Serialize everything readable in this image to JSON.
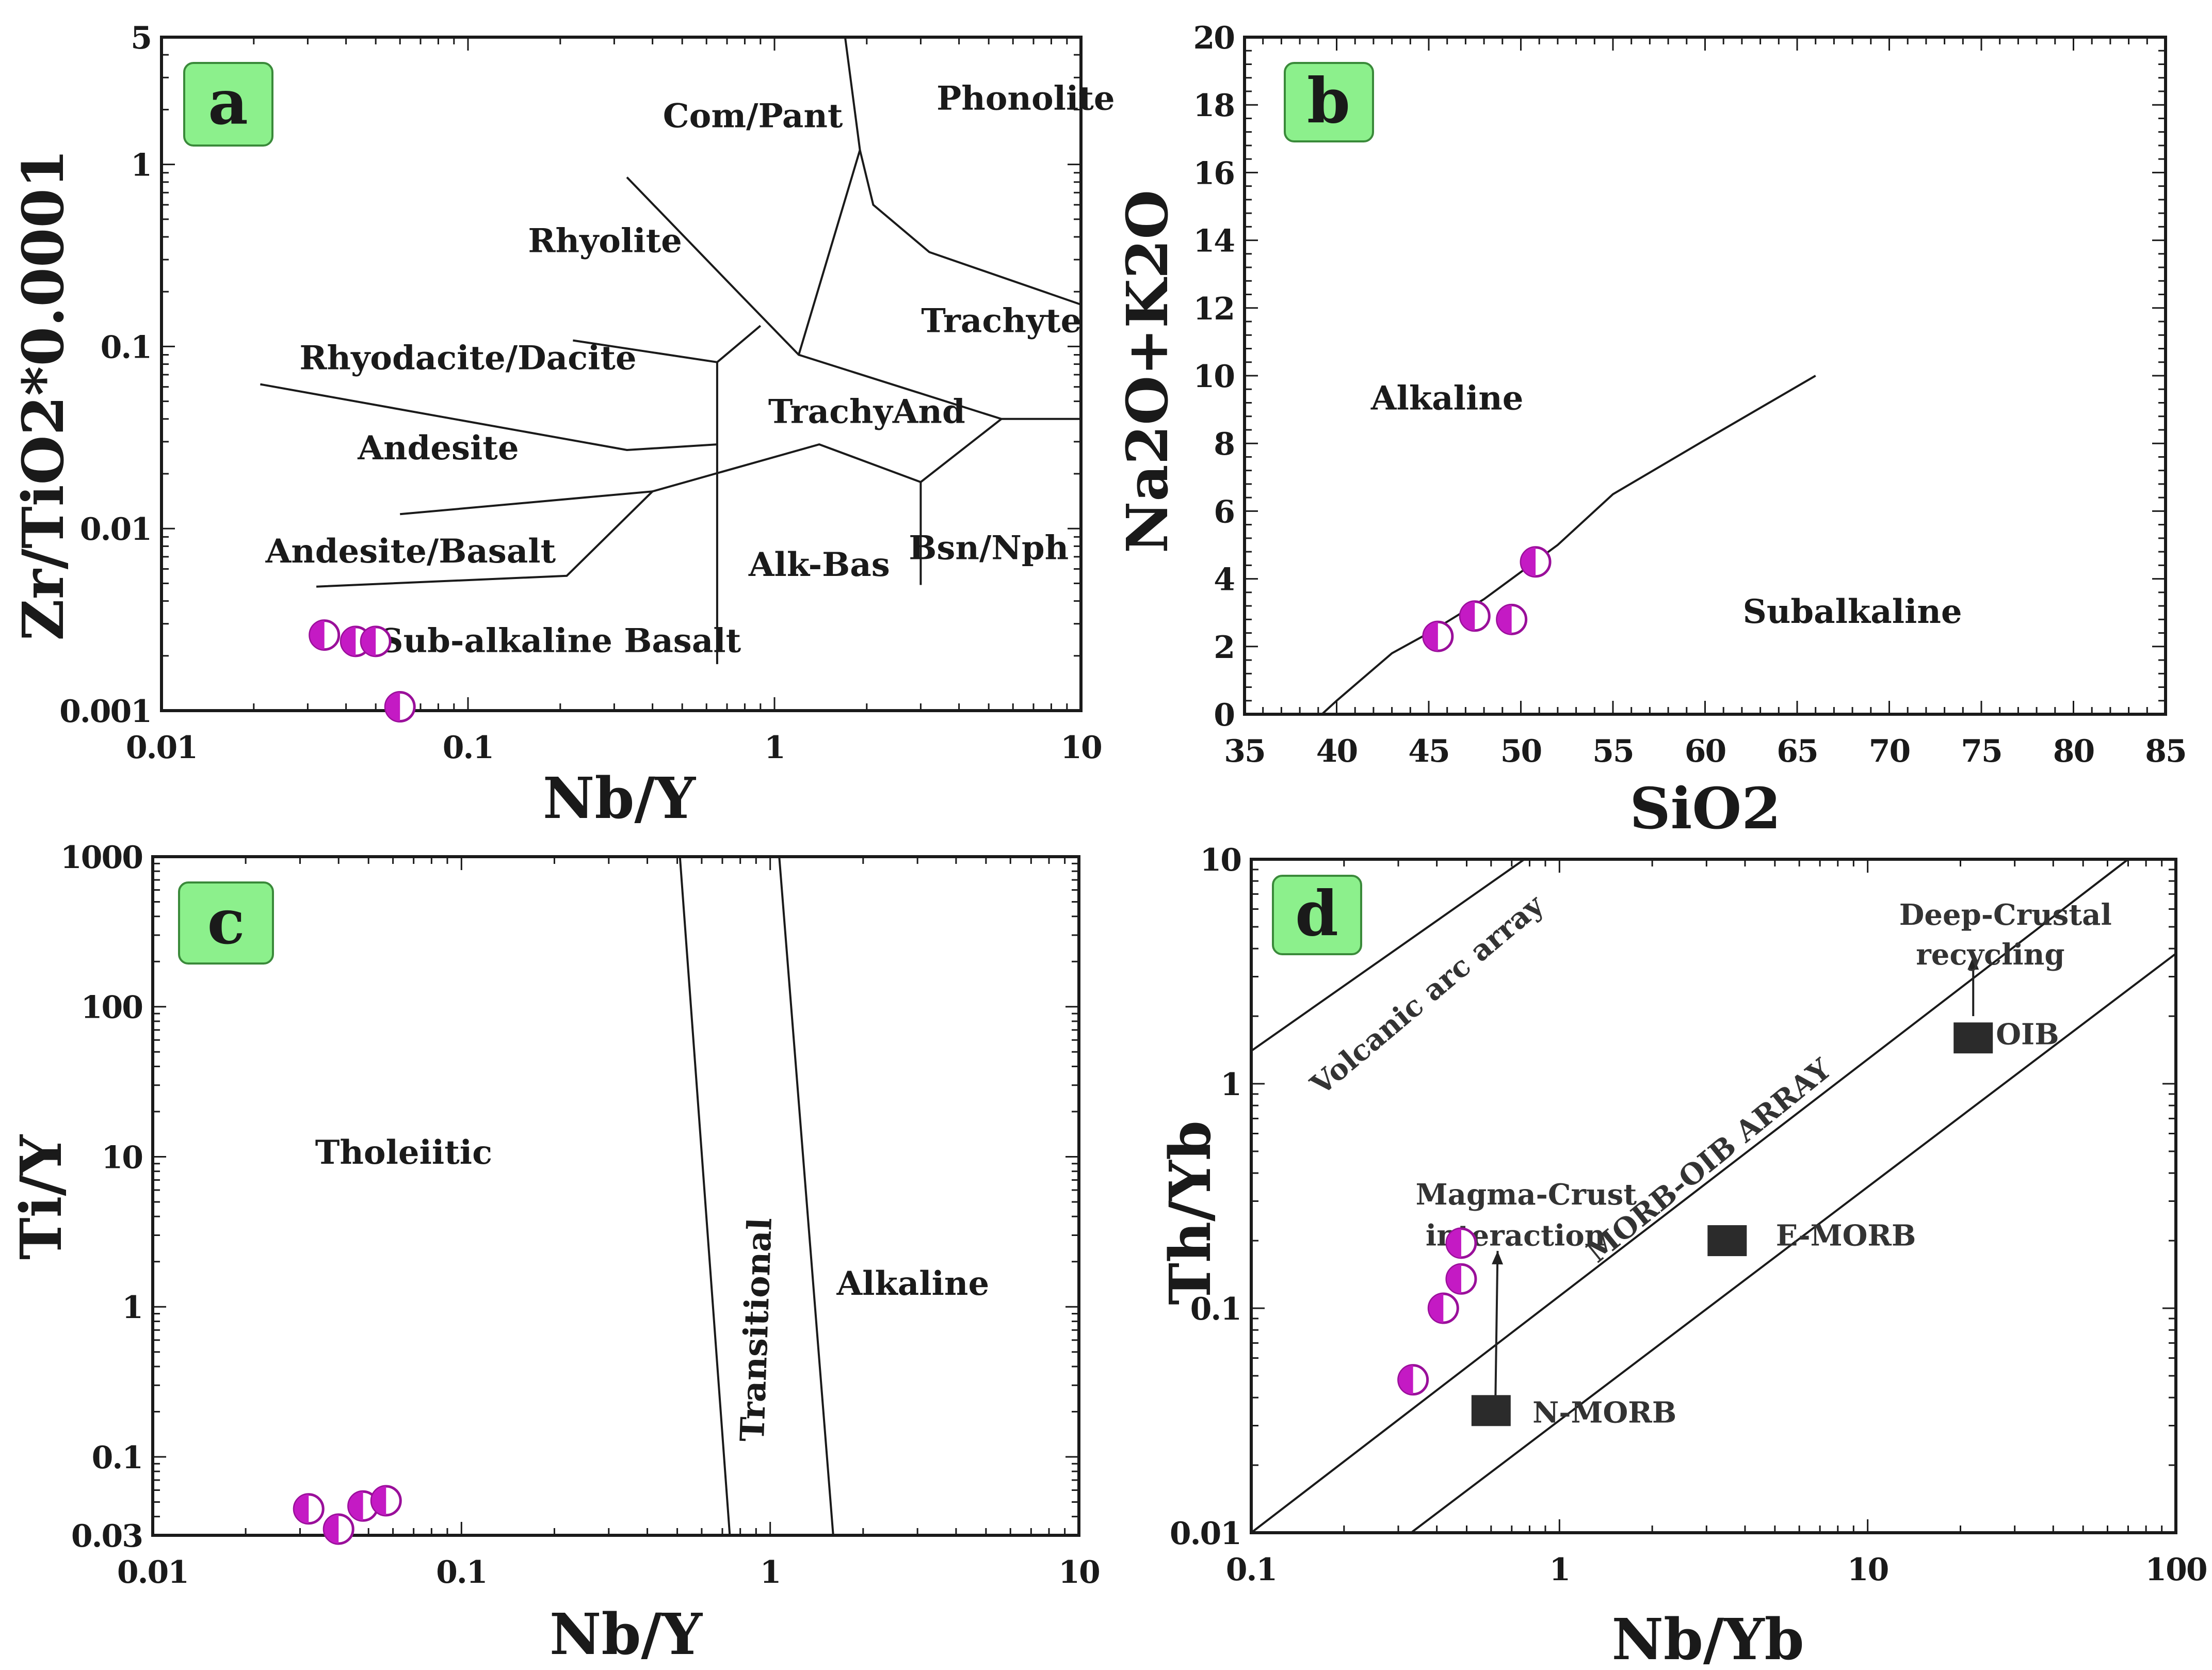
{
  "colors": {
    "sample_fill": "#c41ac4",
    "sample_stroke": "#9a0f9a",
    "tag_bg": "#8cf08c",
    "tag_border": "#3a8a3a",
    "reference_box": "#2b2b2b",
    "line": "#1a1a1a"
  },
  "chart_data": [
    {
      "panel": "a",
      "type": "scatter",
      "title": "",
      "xlabel": "Nb/Y",
      "ylabel": "Zr/TiO2*0.0001",
      "xscale": "log",
      "yscale": "log",
      "xlim": [
        0.01,
        10
      ],
      "ylim": [
        0.001,
        5
      ],
      "xticks": [
        {
          "value": 0.01,
          "label": "0.01"
        },
        {
          "value": 0.1,
          "label": "0.1"
        },
        {
          "value": 1,
          "label": "1"
        },
        {
          "value": 10,
          "label": "10"
        }
      ],
      "yticks": [
        {
          "value": 0.001,
          "label": "0.001"
        },
        {
          "value": 0.01,
          "label": "0.01"
        },
        {
          "value": 0.1,
          "label": "0.1"
        },
        {
          "value": 1,
          "label": "1"
        },
        {
          "value": 5,
          "label": "5"
        }
      ],
      "fields": [
        {
          "label": "Com/Pant",
          "x": 0.85,
          "y": 1.6
        },
        {
          "label": "Phonolite",
          "x": 6.6,
          "y": 2.0
        },
        {
          "label": "Rhyolite",
          "x": 0.28,
          "y": 0.33
        },
        {
          "label": "Trachyte",
          "x": 5.5,
          "y": 0.12
        },
        {
          "label": "Rhyodacite/Dacite",
          "x": 0.1,
          "y": 0.075
        },
        {
          "label": "TrachyAnd",
          "x": 2.0,
          "y": 0.038
        },
        {
          "label": "Andesite",
          "x": 0.08,
          "y": 0.024
        },
        {
          "label": "Andesite/Basalt",
          "x": 0.065,
          "y": 0.0065
        },
        {
          "label": "Alk-Bas",
          "x": 1.4,
          "y": 0.0055
        },
        {
          "label": "Bsn/Nph",
          "x": 5.0,
          "y": 0.0068
        },
        {
          "label": "Sub-alkaline Basalt",
          "x": 0.2,
          "y": 0.0021
        }
      ],
      "boundaries": [
        [
          [
            1.7,
            5
          ],
          [
            1.9,
            1.2
          ],
          [
            2.1,
            0.6
          ],
          [
            3.2,
            0.33
          ],
          [
            10,
            0.17
          ]
        ],
        [
          [
            1.9,
            1.2
          ],
          [
            1.2,
            0.09
          ]
        ],
        [
          [
            0.33,
            0.85
          ],
          [
            0.78,
            0.19
          ],
          [
            1.2,
            0.09
          ],
          [
            5.5,
            0.04
          ],
          [
            10,
            0.04
          ]
        ],
        [
          [
            0.021,
            0.062
          ],
          [
            0.33,
            0.027
          ],
          [
            0.65,
            0.029
          ]
        ],
        [
          [
            0.22,
            0.108
          ],
          [
            0.65,
            0.082
          ]
        ],
        [
          [
            0.65,
            0.082
          ],
          [
            0.9,
            0.13
          ]
        ],
        [
          [
            0.65,
            0.0018
          ],
          [
            0.65,
            0.082
          ]
        ],
        [
          [
            0.06,
            0.012
          ],
          [
            0.4,
            0.016
          ]
        ],
        [
          [
            0.032,
            0.0048
          ],
          [
            0.21,
            0.0055
          ],
          [
            0.4,
            0.016
          ],
          [
            1.4,
            0.029
          ],
          [
            3.0,
            0.018
          ],
          [
            5.5,
            0.04
          ]
        ],
        [
          [
            3.0,
            0.0049
          ],
          [
            3.0,
            0.018
          ]
        ]
      ],
      "samples": [
        {
          "x": 0.034,
          "y": 0.0026
        },
        {
          "x": 0.043,
          "y": 0.0024
        },
        {
          "x": 0.05,
          "y": 0.0024
        },
        {
          "x": 0.06,
          "y": 0.00105
        }
      ]
    },
    {
      "panel": "b",
      "type": "scatter",
      "title": "",
      "xlabel": "SiO2",
      "ylabel": "Na2O+K2O",
      "xscale": "linear",
      "yscale": "linear",
      "xlim": [
        35,
        85
      ],
      "ylim": [
        0,
        20
      ],
      "xticks": [
        {
          "value": 35,
          "label": "35"
        },
        {
          "value": 40,
          "label": "40"
        },
        {
          "value": 45,
          "label": "45"
        },
        {
          "value": 50,
          "label": "50"
        },
        {
          "value": 55,
          "label": "55"
        },
        {
          "value": 60,
          "label": "60"
        },
        {
          "value": 65,
          "label": "65"
        },
        {
          "value": 70,
          "label": "70"
        },
        {
          "value": 75,
          "label": "75"
        },
        {
          "value": 80,
          "label": "80"
        },
        {
          "value": 85,
          "label": "85"
        }
      ],
      "yticks": [
        {
          "value": 0,
          "label": "0"
        },
        {
          "value": 2,
          "label": "2"
        },
        {
          "value": 4,
          "label": "4"
        },
        {
          "value": 6,
          "label": "6"
        },
        {
          "value": 8,
          "label": "8"
        },
        {
          "value": 10,
          "label": "10"
        },
        {
          "value": 12,
          "label": "12"
        },
        {
          "value": 14,
          "label": "14"
        },
        {
          "value": 16,
          "label": "16"
        },
        {
          "value": 18,
          "label": "18"
        },
        {
          "value": 20,
          "label": "20"
        }
      ],
      "fields": [
        {
          "label": "Alkaline",
          "x": 46.0,
          "y": 9.0
        },
        {
          "label": "Subalkaline",
          "x": 68.0,
          "y": 2.7
        }
      ],
      "boundaries": [
        [
          [
            39.2,
            0
          ],
          [
            40,
            0.4
          ],
          [
            43,
            1.8
          ],
          [
            45,
            2.4
          ],
          [
            48,
            3.4
          ],
          [
            52,
            5.0
          ],
          [
            55,
            6.5
          ],
          [
            60,
            8.1
          ],
          [
            66,
            10.0
          ]
        ]
      ],
      "samples": [
        {
          "x": 45.5,
          "y": 2.3
        },
        {
          "x": 47.5,
          "y": 2.9
        },
        {
          "x": 49.5,
          "y": 2.8
        },
        {
          "x": 50.8,
          "y": 4.5
        }
      ]
    },
    {
      "panel": "c",
      "type": "scatter",
      "title": "",
      "xlabel": "Nb/Y",
      "ylabel": "Ti/Y",
      "xscale": "log",
      "yscale": "log",
      "xlim": [
        0.01,
        10
      ],
      "ylim": [
        0.03,
        1000
      ],
      "xticks": [
        {
          "value": 0.01,
          "label": "0.01"
        },
        {
          "value": 0.1,
          "label": "0.1"
        },
        {
          "value": 1,
          "label": "1"
        },
        {
          "value": 10,
          "label": "10"
        }
      ],
      "yticks": [
        {
          "value": 0.03,
          "label": "0.03"
        },
        {
          "value": 0.1,
          "label": "0.1"
        },
        {
          "value": 1,
          "label": "1"
        },
        {
          "value": 10,
          "label": "10"
        },
        {
          "value": 100,
          "label": "100"
        },
        {
          "value": 1000,
          "label": "1000"
        }
      ],
      "fields": [
        {
          "label": "Tholeiitic",
          "x": 0.065,
          "y": 9.0
        },
        {
          "label": "Alkaline",
          "x": 2.9,
          "y": 1.2
        }
      ],
      "rotated_fields": [
        {
          "label": "Transitional",
          "x": 0.98,
          "y": 0.7
        }
      ],
      "boundaries": [
        [
          [
            0.51,
            1000
          ],
          [
            0.74,
            0.03
          ]
        ],
        [
          [
            1.07,
            1000
          ],
          [
            1.6,
            0.03
          ]
        ]
      ],
      "samples": [
        {
          "x": 0.032,
          "y": 0.045
        },
        {
          "x": 0.04,
          "y": 0.033
        },
        {
          "x": 0.048,
          "y": 0.047
        },
        {
          "x": 0.057,
          "y": 0.051
        }
      ]
    },
    {
      "panel": "d",
      "type": "scatter",
      "title": "",
      "xlabel": "Nb/Yb",
      "ylabel": "Th/Yb",
      "xscale": "log",
      "yscale": "log",
      "xlim": [
        0.1,
        100
      ],
      "ylim": [
        0.01,
        10
      ],
      "xticks": [
        {
          "value": 0.1,
          "label": "0.1"
        },
        {
          "value": 1,
          "label": "1"
        },
        {
          "value": 10,
          "label": "10"
        },
        {
          "value": 100,
          "label": "100"
        }
      ],
      "yticks": [
        {
          "value": 0.01,
          "label": "0.01"
        },
        {
          "value": 0.1,
          "label": "0.1"
        },
        {
          "value": 1,
          "label": "1"
        },
        {
          "value": 10,
          "label": "10"
        }
      ],
      "fields": [
        {
          "label": "Deep-Crustal",
          "x": 28,
          "y": 5.1
        },
        {
          "label": "recycling",
          "x": 25,
          "y": 3.4
        },
        {
          "label": "OIB",
          "x": 33,
          "y": 1.5
        },
        {
          "label": "E-MORB",
          "x": 8.5,
          "y": 0.19
        },
        {
          "label": "N-MORB",
          "x": 1.4,
          "y": 0.031
        },
        {
          "label": "Magma-Crust",
          "x": 0.78,
          "y": 0.29
        },
        {
          "label": "interaction",
          "x": 0.72,
          "y": 0.19
        }
      ],
      "rotated_fields": [
        {
          "label": "Volcanic arc array",
          "x": 0.39,
          "y": 2.3,
          "angle": -40
        },
        {
          "label": "MORB-OIB ARRAY",
          "x": 3.2,
          "y": 0.42,
          "angle": -39
        }
      ],
      "arrows": [
        [
          [
            0.62,
            0.04
          ],
          [
            0.63,
            0.18
          ]
        ],
        [
          [
            22,
            2.0
          ],
          [
            22,
            3.7
          ]
        ]
      ],
      "reference_points": [
        {
          "label": "N-MORB",
          "x": 0.6,
          "y": 0.035
        },
        {
          "label": "E-MORB",
          "x": 3.5,
          "y": 0.2
        },
        {
          "label": "OIB",
          "x": 22,
          "y": 1.6
        }
      ],
      "boundaries": [
        [
          [
            0.1,
            1.4
          ],
          [
            0.77,
            10
          ]
        ],
        [
          [
            0.1,
            0.01
          ],
          [
            70,
            10
          ]
        ],
        [
          [
            0.33,
            0.01
          ],
          [
            100,
            3.8
          ]
        ]
      ],
      "samples": [
        {
          "x": 0.335,
          "y": 0.048
        },
        {
          "x": 0.42,
          "y": 0.1
        },
        {
          "x": 0.48,
          "y": 0.135
        },
        {
          "x": 0.48,
          "y": 0.195
        }
      ]
    }
  ]
}
